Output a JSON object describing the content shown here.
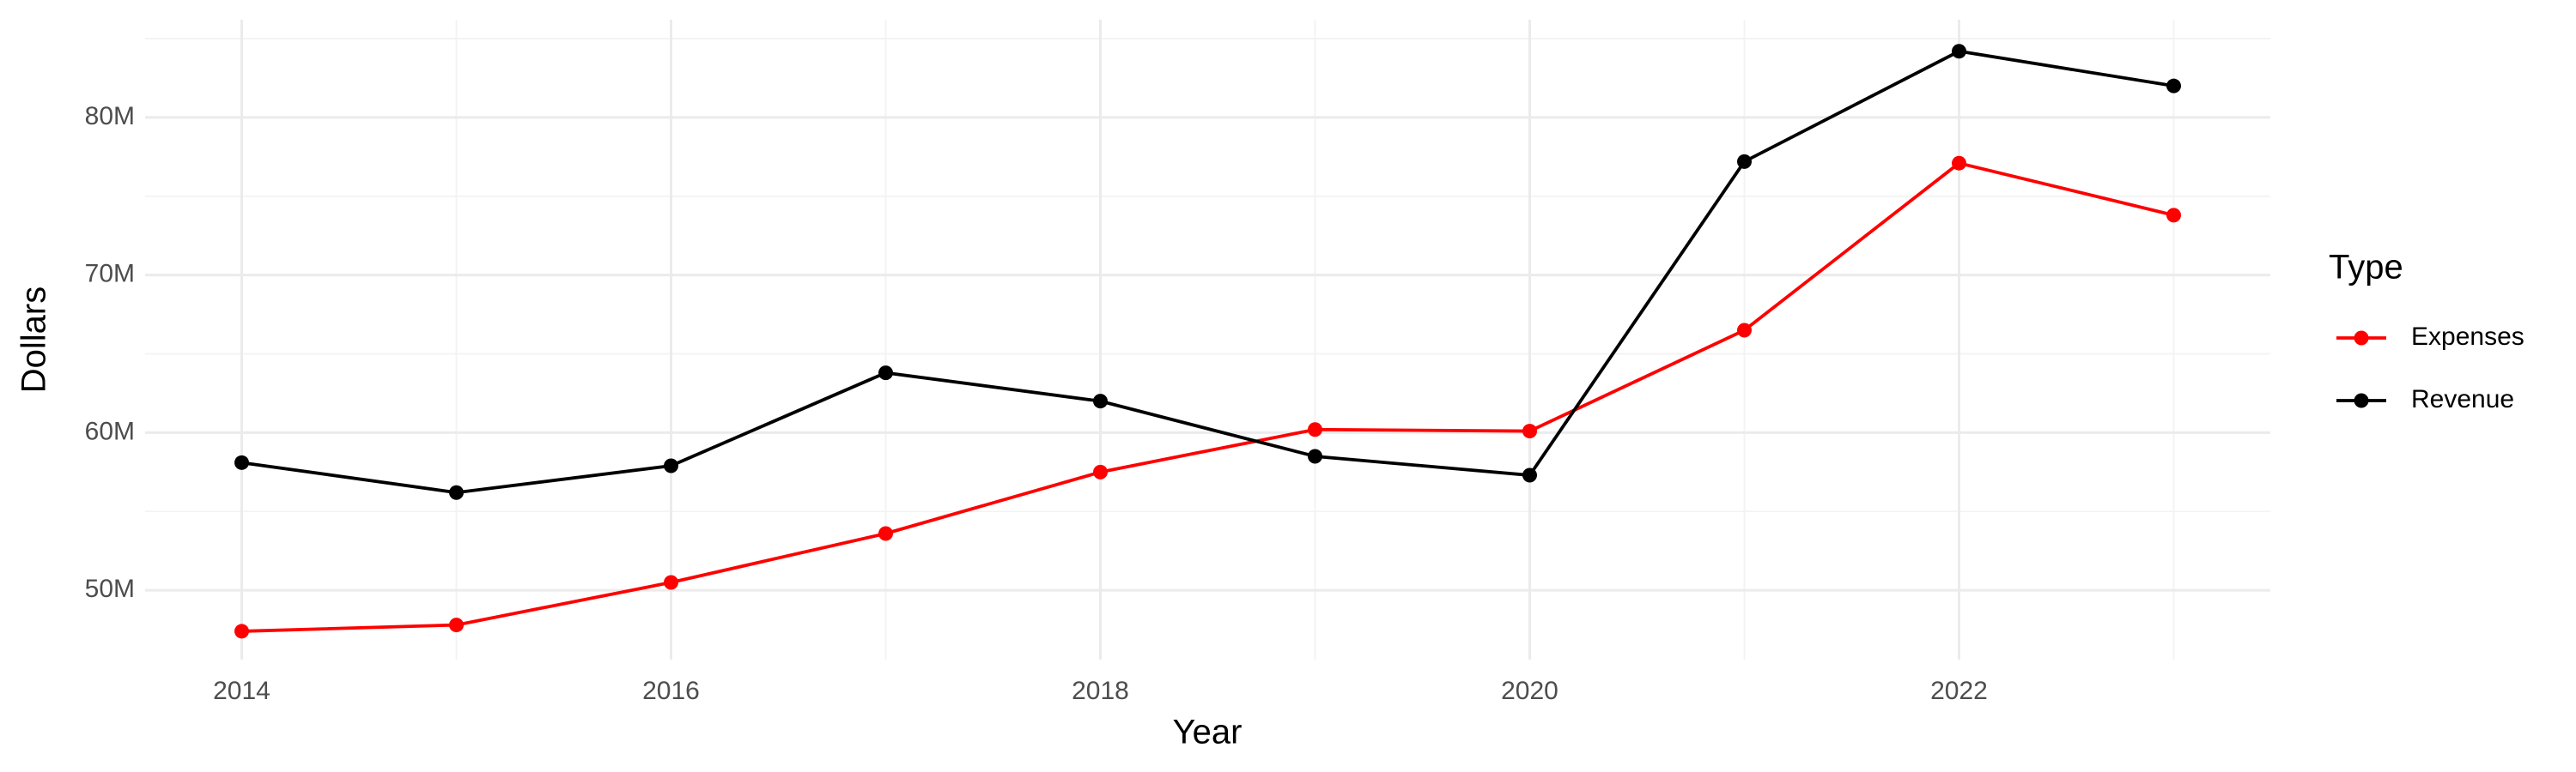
{
  "chart_data": {
    "type": "line",
    "x": [
      2014,
      2015,
      2016,
      2017,
      2018,
      2019,
      2020,
      2021,
      2022,
      2023
    ],
    "series": [
      {
        "name": "Expenses",
        "color": "#ff0000",
        "values": [
          47400000,
          47800000,
          50500000,
          53600000,
          57500000,
          60200000,
          60100000,
          66500000,
          77100000,
          73800000
        ]
      },
      {
        "name": "Revenue",
        "color": "#000000",
        "values": [
          58100000,
          56200000,
          57900000,
          63800000,
          62000000,
          58500000,
          57300000,
          77200000,
          84200000,
          82000000
        ]
      }
    ],
    "xlabel": "Year",
    "ylabel": "Dollars",
    "legend_title": "Type",
    "xlim": [
      2013.55,
      2023.45
    ],
    "xticks": [
      2014,
      2016,
      2018,
      2020,
      2022
    ],
    "ylim": [
      45600000,
      86200000
    ],
    "yticks": [
      {
        "value": 50000000,
        "label": "50M"
      },
      {
        "value": 60000000,
        "label": "60M"
      },
      {
        "value": 70000000,
        "label": "70M"
      },
      {
        "value": 80000000,
        "label": "80M"
      }
    ],
    "grid": true,
    "legend": "right"
  }
}
